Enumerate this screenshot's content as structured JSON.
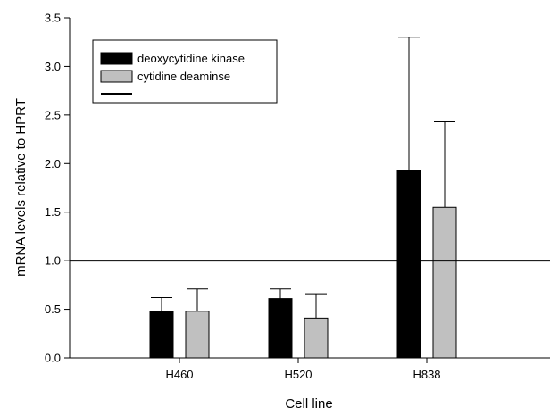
{
  "chart_data": {
    "type": "bar",
    "title": "",
    "xlabel": "Cell line",
    "ylabel": "mRNA levels relative to HPRT",
    "categories": [
      "H460",
      "H520",
      "H838"
    ],
    "series": [
      {
        "name": "deoxycytidine kinase",
        "color": "#000000",
        "values": [
          0.48,
          0.61,
          1.93
        ],
        "error_upper": [
          0.62,
          0.71,
          3.3
        ]
      },
      {
        "name": "cytidine deaminse",
        "color": "#c0c0c0",
        "values": [
          0.48,
          0.41,
          1.55
        ],
        "error_upper": [
          0.71,
          0.66,
          2.43
        ]
      }
    ],
    "reference_line": {
      "y": 1.0,
      "color": "#000000"
    },
    "ylim": [
      0,
      3.5
    ],
    "yticks": [
      "0.0",
      "0.5",
      "1.0",
      "1.5",
      "2.0",
      "2.5",
      "3.0",
      "3.5"
    ],
    "grid": false,
    "legend_position": "top-left"
  }
}
